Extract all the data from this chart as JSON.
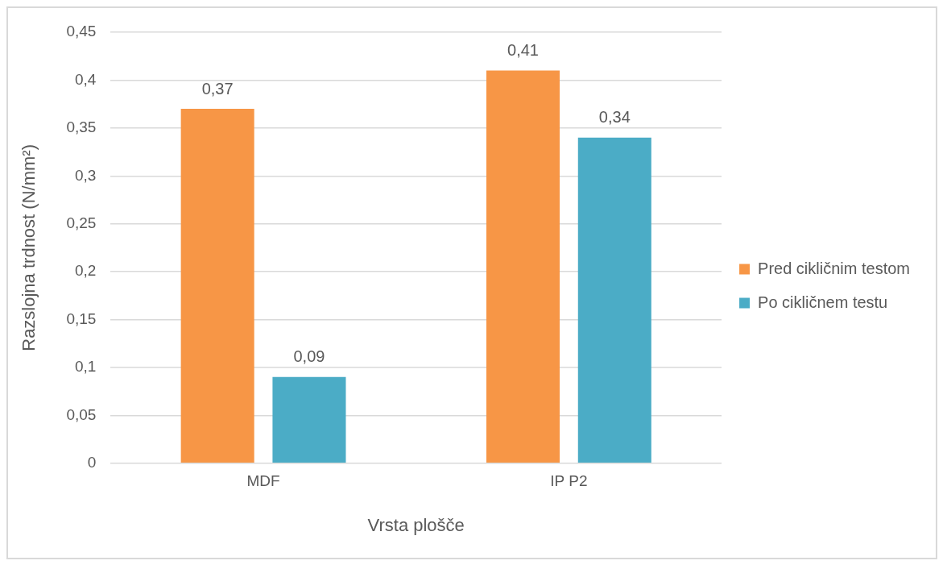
{
  "chart_data": {
    "type": "bar",
    "xlabel": "Vrsta plošče",
    "ylabel": "Razslojna trdnost (N/mm²)",
    "categories": [
      "MDF",
      "IP P2"
    ],
    "series": [
      {
        "name": "Pred cikličnim testom",
        "color": "#f79646",
        "values": [
          0.37,
          0.41
        ],
        "value_labels": [
          "0,37",
          "0,41"
        ]
      },
      {
        "name": "Po cikličnem testu",
        "color": "#4bacc6",
        "values": [
          0.09,
          0.34
        ],
        "value_labels": [
          "0,09",
          "0,34"
        ]
      }
    ],
    "ylim": [
      0,
      0.45
    ],
    "yticks": [
      {
        "value": 0,
        "label": "0"
      },
      {
        "value": 0.05,
        "label": "0,05"
      },
      {
        "value": 0.1,
        "label": "0,1"
      },
      {
        "value": 0.15,
        "label": "0,15"
      },
      {
        "value": 0.2,
        "label": "0,2"
      },
      {
        "value": 0.25,
        "label": "0,25"
      },
      {
        "value": 0.3,
        "label": "0,3"
      },
      {
        "value": 0.35,
        "label": "0,35"
      },
      {
        "value": 0.4,
        "label": "0,4"
      },
      {
        "value": 0.45,
        "label": "0,45"
      }
    ],
    "grid": "y",
    "legend": "right"
  }
}
